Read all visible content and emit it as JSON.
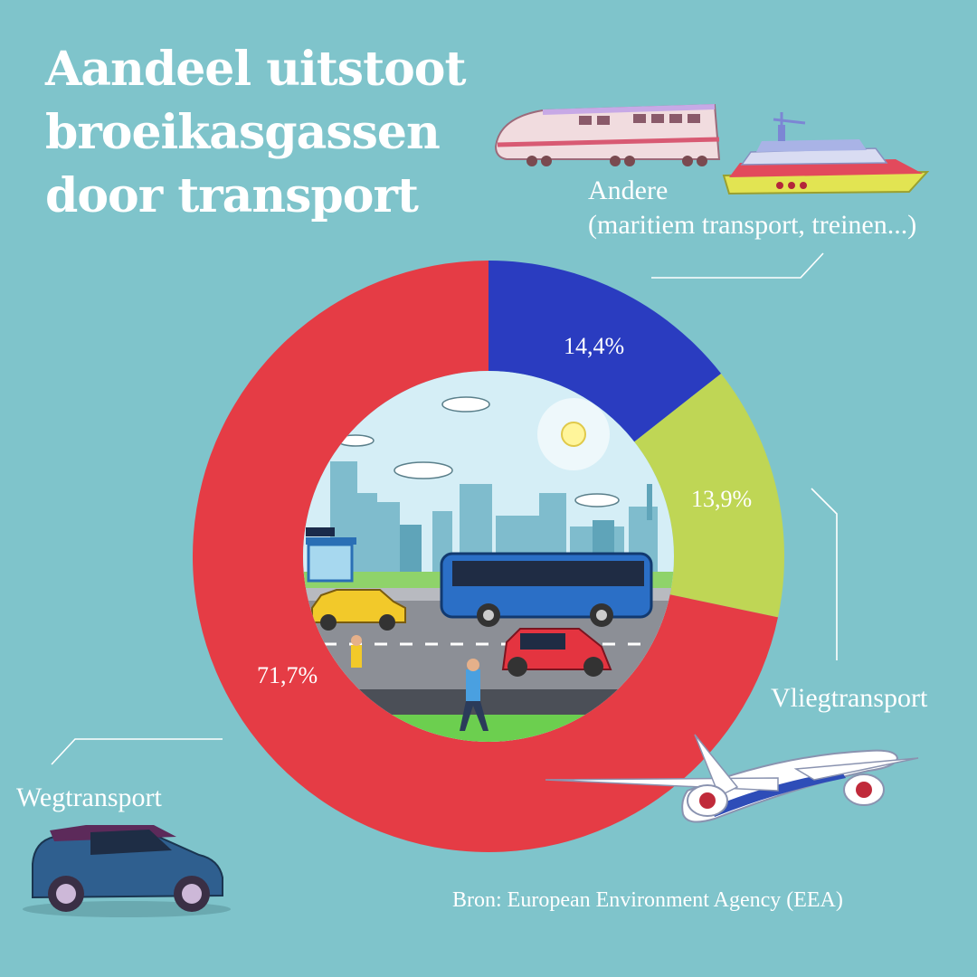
{
  "title_lines": [
    "Aandeel uitstoot",
    "broeikasgassen",
    "door transport"
  ],
  "source": "Bron: European Environment Agency (EEA)",
  "chart_data": {
    "type": "pie",
    "variant": "donut",
    "title": "Aandeel uitstoot broeikasgassen door transport",
    "slices": [
      {
        "label": "Andere",
        "label_sub": "(maritiem transport, treinen...)",
        "value": 14.4,
        "value_label": "14,4%",
        "color": "#2a3cc0"
      },
      {
        "label": "Vliegtransport",
        "value": 13.9,
        "value_label": "13,9%",
        "color": "#bfd655"
      },
      {
        "label": "Wegtransport",
        "value": 71.7,
        "value_label": "71,7%",
        "color": "#e53c45"
      }
    ]
  },
  "icons": [
    "train-icon",
    "ship-icon",
    "airplane-icon",
    "car-icon",
    "city-scene-icon"
  ]
}
